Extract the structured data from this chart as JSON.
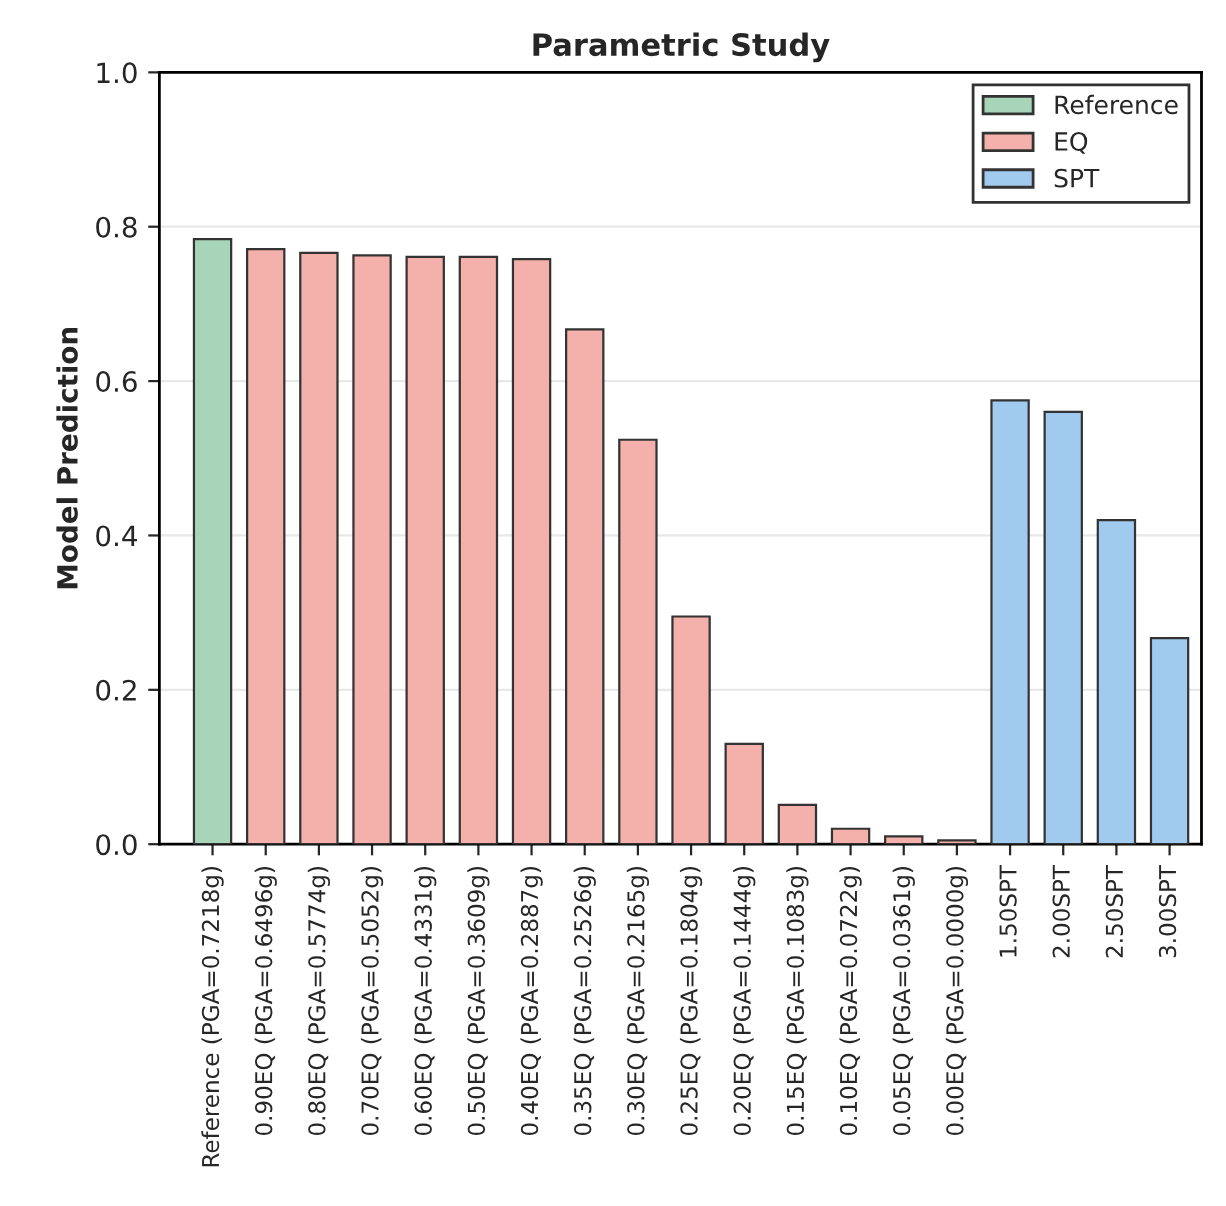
{
  "chart_data": {
    "type": "bar",
    "title": "Parametric Study",
    "ylabel": "Model Prediction",
    "categories": [
      "Reference (PGA=0.7218g)",
      "0.90EQ (PGA=0.6496g)",
      "0.80EQ (PGA=0.5774g)",
      "0.70EQ (PGA=0.5052g)",
      "0.60EQ (PGA=0.4331g)",
      "0.50EQ (PGA=0.3609g)",
      "0.40EQ (PGA=0.2887g)",
      "0.35EQ (PGA=0.2526g)",
      "0.30EQ (PGA=0.2165g)",
      "0.25EQ (PGA=0.1804g)",
      "0.20EQ (PGA=0.1444g)",
      "0.15EQ (PGA=0.1083g)",
      "0.10EQ (PGA=0.0722g)",
      "0.05EQ (PGA=0.0361g)",
      "0.00EQ (PGA=0.0000g)",
      "1.50SPT",
      "2.00SPT",
      "2.50SPT",
      "3.00SPT"
    ],
    "series": [
      {
        "name": "Reference",
        "color": "#a8d5ba",
        "values": [
          0.784,
          null,
          null,
          null,
          null,
          null,
          null,
          null,
          null,
          null,
          null,
          null,
          null,
          null,
          null,
          null,
          null,
          null,
          null
        ]
      },
      {
        "name": "EQ",
        "color": "#f4b0aa",
        "values": [
          null,
          0.771,
          0.766,
          0.763,
          0.761,
          0.761,
          0.758,
          0.667,
          0.524,
          0.295,
          0.13,
          0.051,
          0.02,
          0.01,
          0.005,
          null,
          null,
          null,
          null
        ]
      },
      {
        "name": "SPT",
        "color": "#a0cbee",
        "values": [
          null,
          null,
          null,
          null,
          null,
          null,
          null,
          null,
          null,
          null,
          null,
          null,
          null,
          null,
          null,
          0.575,
          0.56,
          0.42,
          0.267
        ]
      }
    ],
    "ylim": [
      0,
      1.0
    ],
    "yticks": [
      {
        "value": 0,
        "label": "0.0"
      },
      {
        "value": 0.2,
        "label": "0.2"
      },
      {
        "value": 0.4,
        "label": "0.4"
      },
      {
        "value": 0.6,
        "label": "0.6"
      },
      {
        "value": 0.8,
        "label": "0.8"
      },
      {
        "value": 1.0,
        "label": "1.0"
      }
    ],
    "grid": "y",
    "legend": "top right"
  }
}
